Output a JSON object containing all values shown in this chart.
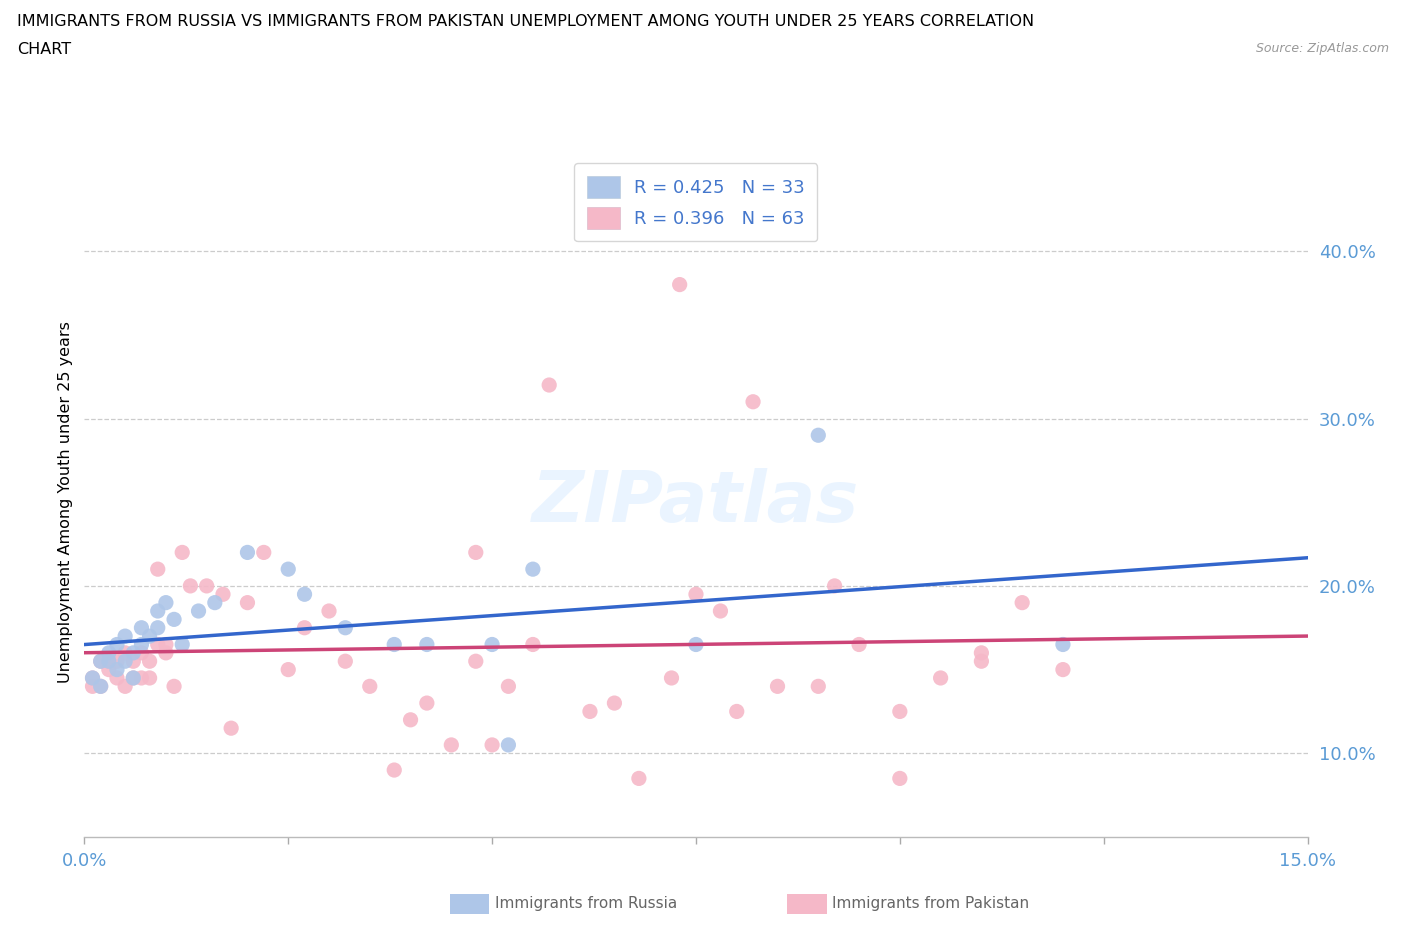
{
  "title_line1": "IMMIGRANTS FROM RUSSIA VS IMMIGRANTS FROM PAKISTAN UNEMPLOYMENT AMONG YOUTH UNDER 25 YEARS CORRELATION",
  "title_line2": "CHART",
  "source": "Source: ZipAtlas.com",
  "ylabel": "Unemployment Among Youth under 25 years",
  "xlim": [
    0.0,
    0.15
  ],
  "ylim": [
    0.05,
    0.45
  ],
  "yticks": [
    0.1,
    0.2,
    0.3,
    0.4
  ],
  "ytick_labels": [
    "10.0%",
    "20.0%",
    "30.0%",
    "40.0%"
  ],
  "xticks": [
    0.0,
    0.025,
    0.05,
    0.075,
    0.1,
    0.125,
    0.15
  ],
  "xtick_labels": [
    "0.0%",
    "",
    "",
    "",
    "",
    "",
    "15.0%"
  ],
  "legend_R_russia": "R = 0.425",
  "legend_N_russia": "N = 33",
  "legend_R_pakistan": "R = 0.396",
  "legend_N_pakistan": "N = 63",
  "russia_scatter_color": "#aec6e8",
  "pakistan_scatter_color": "#f5b8c8",
  "trendline_russia_color": "#3366cc",
  "trendline_pakistan_color": "#cc4477",
  "watermark": "ZIPatlas",
  "russia_x": [
    0.001,
    0.002,
    0.002,
    0.003,
    0.003,
    0.004,
    0.004,
    0.005,
    0.005,
    0.006,
    0.006,
    0.007,
    0.007,
    0.008,
    0.009,
    0.009,
    0.01,
    0.011,
    0.012,
    0.014,
    0.016,
    0.02,
    0.025,
    0.027,
    0.032,
    0.038,
    0.042,
    0.05,
    0.052,
    0.055,
    0.075,
    0.09,
    0.12
  ],
  "russia_y": [
    0.145,
    0.155,
    0.14,
    0.16,
    0.155,
    0.165,
    0.15,
    0.155,
    0.17,
    0.145,
    0.16,
    0.165,
    0.175,
    0.17,
    0.185,
    0.175,
    0.19,
    0.18,
    0.165,
    0.185,
    0.19,
    0.22,
    0.21,
    0.195,
    0.175,
    0.165,
    0.165,
    0.165,
    0.105,
    0.21,
    0.165,
    0.29,
    0.165
  ],
  "pakistan_x": [
    0.001,
    0.001,
    0.002,
    0.002,
    0.003,
    0.003,
    0.004,
    0.004,
    0.005,
    0.005,
    0.006,
    0.006,
    0.007,
    0.007,
    0.008,
    0.008,
    0.009,
    0.009,
    0.01,
    0.01,
    0.011,
    0.012,
    0.013,
    0.015,
    0.017,
    0.018,
    0.02,
    0.022,
    0.025,
    0.027,
    0.03,
    0.032,
    0.035,
    0.038,
    0.04,
    0.042,
    0.045,
    0.048,
    0.05,
    0.052,
    0.055,
    0.057,
    0.062,
    0.065,
    0.068,
    0.072,
    0.075,
    0.078,
    0.08,
    0.085,
    0.09,
    0.095,
    0.1,
    0.105,
    0.11,
    0.115,
    0.12,
    0.073,
    0.082,
    0.092,
    0.1,
    0.11,
    0.048
  ],
  "pakistan_y": [
    0.145,
    0.14,
    0.155,
    0.14,
    0.15,
    0.155,
    0.155,
    0.145,
    0.14,
    0.16,
    0.145,
    0.155,
    0.145,
    0.16,
    0.145,
    0.155,
    0.165,
    0.21,
    0.16,
    0.165,
    0.14,
    0.22,
    0.2,
    0.2,
    0.195,
    0.115,
    0.19,
    0.22,
    0.15,
    0.175,
    0.185,
    0.155,
    0.14,
    0.09,
    0.12,
    0.13,
    0.105,
    0.155,
    0.105,
    0.14,
    0.165,
    0.32,
    0.125,
    0.13,
    0.085,
    0.145,
    0.195,
    0.185,
    0.125,
    0.14,
    0.14,
    0.165,
    0.125,
    0.145,
    0.16,
    0.19,
    0.15,
    0.38,
    0.31,
    0.2,
    0.085,
    0.155,
    0.22
  ]
}
